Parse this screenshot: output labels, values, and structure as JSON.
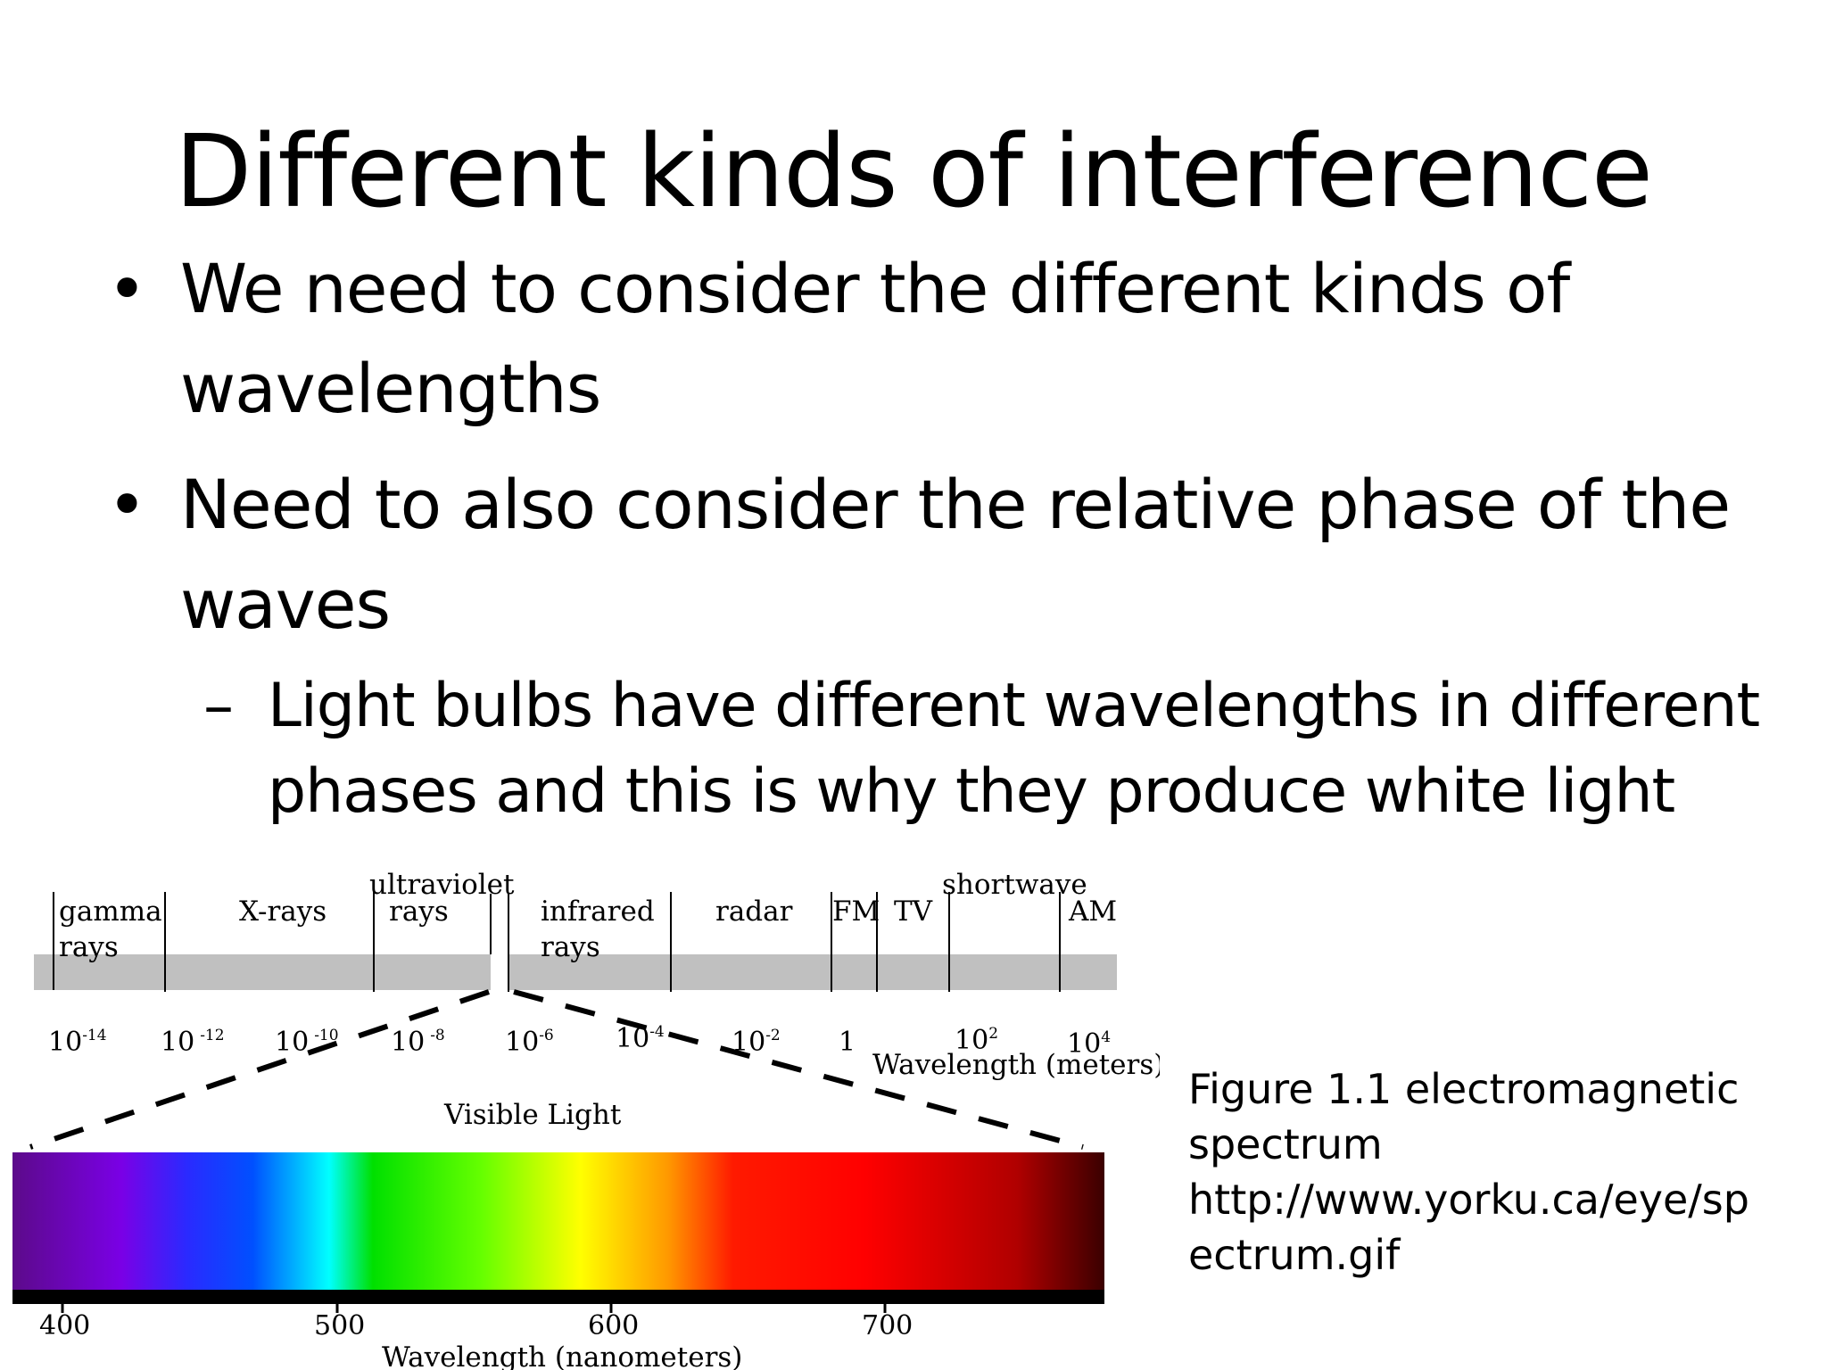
{
  "slide": {
    "title": "Different kinds of interference",
    "bullets": [
      "We need to consider the different kinds of wavelengths",
      "Need to also consider the relative phase of the waves"
    ],
    "sub_bullet": "Light bulbs have different wavelengths in different phases and this is why they produce white light",
    "bullet_glyph": "•",
    "sub_bullet_glyph": "–"
  },
  "figure": {
    "bands": [
      "gamma rays",
      "X-rays",
      "ultraviolet rays",
      "infrared rays",
      "radar",
      "FM",
      "TV",
      "shortwave",
      "AM"
    ],
    "band_lines": {
      "gamma": [
        "gamma",
        "rays"
      ],
      "xrays": "X-rays",
      "uv": [
        "ultraviolet",
        "rays"
      ],
      "ir": [
        "infrared",
        "rays"
      ],
      "radar": "radar",
      "fm": "FM",
      "tv": "TV",
      "shortwave": "shortwave",
      "am": "AM"
    },
    "meter_ticks": [
      {
        "base": "10",
        "exp": "-14"
      },
      {
        "base": "10",
        "exp": "-12"
      },
      {
        "base": "10",
        "exp": "-10"
      },
      {
        "base": "10",
        "exp": "-8"
      },
      {
        "base": "10",
        "exp": "-6"
      },
      {
        "base": "10",
        "exp": "-4"
      },
      {
        "base": "10",
        "exp": "-2"
      },
      {
        "base": "1",
        "exp": ""
      },
      {
        "base": "10",
        "exp": "2"
      },
      {
        "base": "10",
        "exp": "4"
      }
    ],
    "meter_axis_label": "Wavelength (meters)",
    "visible_label": "Visible Light",
    "nm_ticks": [
      "400",
      "500",
      "600",
      "700"
    ],
    "nm_axis_label": "Wavelength (nanometers)",
    "spectrum_colors": [
      "#5c0a8a",
      "#7a00e6",
      "#2a2aff",
      "#0050ff",
      "#00ffff",
      "#00e000",
      "#66ff00",
      "#ffff00",
      "#ff9900",
      "#ff1a00",
      "#ff0000",
      "#b00000",
      "#3a0000"
    ]
  },
  "caption": {
    "lines": [
      "Figure 1.1 electromagnetic",
      "spectrum",
      "http://www.yorku.ca/eye/sp",
      "ectrum.gif"
    ]
  }
}
